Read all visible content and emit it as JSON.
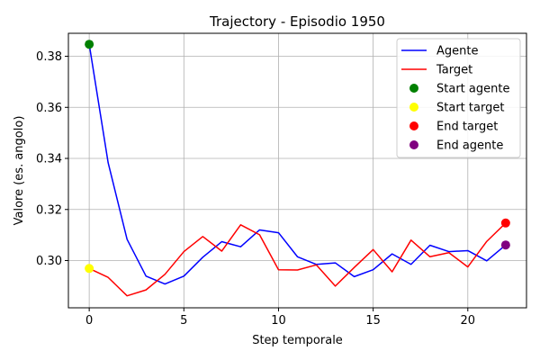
{
  "chart_data": {
    "type": "line",
    "title": "Trajectory - Episodio 1950",
    "xlabel": "Step temporale",
    "ylabel": "Valore (es. angolo)",
    "xlim": [
      -1.1,
      23.1
    ],
    "ylim": [
      0.2815,
      0.389
    ],
    "x_ticks": [
      0,
      5,
      10,
      15,
      20
    ],
    "y_ticks": [
      0.3,
      0.32,
      0.34,
      0.36,
      0.38
    ],
    "grid": true,
    "legend_position": "top-right",
    "x": [
      0,
      1,
      2,
      3,
      4,
      5,
      6,
      7,
      8,
      9,
      10,
      11,
      12,
      13,
      14,
      15,
      16,
      17,
      18,
      19,
      20,
      21,
      22
    ],
    "series": [
      {
        "name": "Agente",
        "color": "#0000ff",
        "values": [
          0.3847,
          0.3383,
          0.3083,
          0.2939,
          0.2908,
          0.2939,
          0.3013,
          0.3074,
          0.3054,
          0.312,
          0.3109,
          0.3015,
          0.2985,
          0.2991,
          0.2937,
          0.2964,
          0.3026,
          0.2985,
          0.306,
          0.3035,
          0.3039,
          0.2999,
          0.3061
        ]
      },
      {
        "name": "Target",
        "color": "#ff0000",
        "values": [
          0.2969,
          0.2934,
          0.2862,
          0.2885,
          0.2946,
          0.3035,
          0.3094,
          0.3037,
          0.314,
          0.3101,
          0.2964,
          0.2963,
          0.2983,
          0.29,
          0.2973,
          0.3043,
          0.2956,
          0.308,
          0.3015,
          0.3031,
          0.2975,
          0.3075,
          0.3147
        ]
      }
    ],
    "markers": [
      {
        "name": "Start agente",
        "color": "#008000",
        "x": 0,
        "y": 0.3847
      },
      {
        "name": "Start target",
        "color": "#ffff00",
        "x": 0,
        "y": 0.2969
      },
      {
        "name": "End target",
        "color": "#ff0000",
        "x": 22,
        "y": 0.3147
      },
      {
        "name": "End agente",
        "color": "#800080",
        "x": 22,
        "y": 0.3061
      }
    ]
  }
}
